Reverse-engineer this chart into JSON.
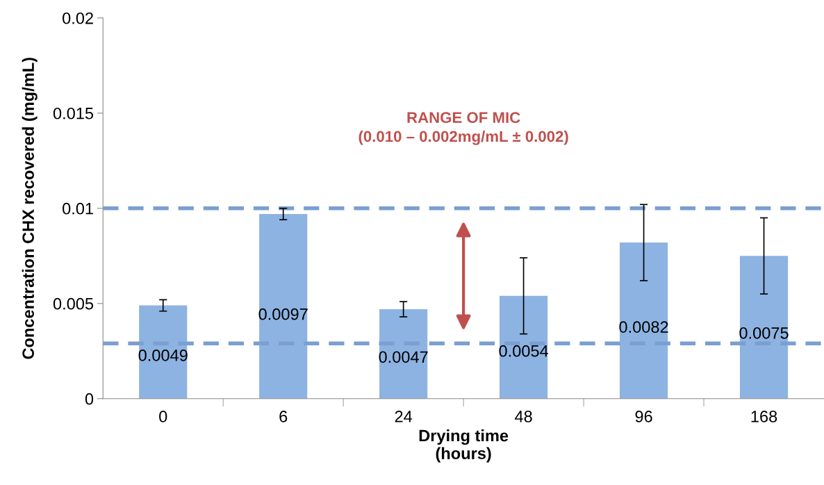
{
  "chart_data": {
    "type": "bar",
    "xlabel": "Drying time\n(hours)",
    "ylabel": "Concentration CHX recovered (mg/mL)",
    "categories": [
      "0",
      "6",
      "24",
      "48",
      "96",
      "168"
    ],
    "values": [
      0.0049,
      0.0097,
      0.0047,
      0.0054,
      0.0082,
      0.0075
    ],
    "errors": [
      0.0003,
      0.0003,
      0.0004,
      0.002,
      0.002,
      0.002
    ],
    "color": "#8db3e2",
    "data_labels": true,
    "ylim": [
      0,
      0.02
    ],
    "yticks": [
      0,
      0.005,
      {
        "value": 0.01,
        "label": "0.01"
      },
      0.015,
      {
        "value": 0.02,
        "label": "0.02"
      }
    ],
    "grid": false,
    "legend": false,
    "ref_lines": [
      {
        "axis": "y",
        "value": 0.01,
        "label": null,
        "color": "#7a9fd0",
        "line_style": "dashed"
      },
      {
        "axis": "y",
        "value": 0.0029,
        "label": null,
        "color": "#7a9fd0",
        "line_style": "dashed"
      }
    ],
    "annotations": [
      "RANGE OF MIC\n(0.010 – 0.002mg/mL ± 0.002)"
    ]
  }
}
